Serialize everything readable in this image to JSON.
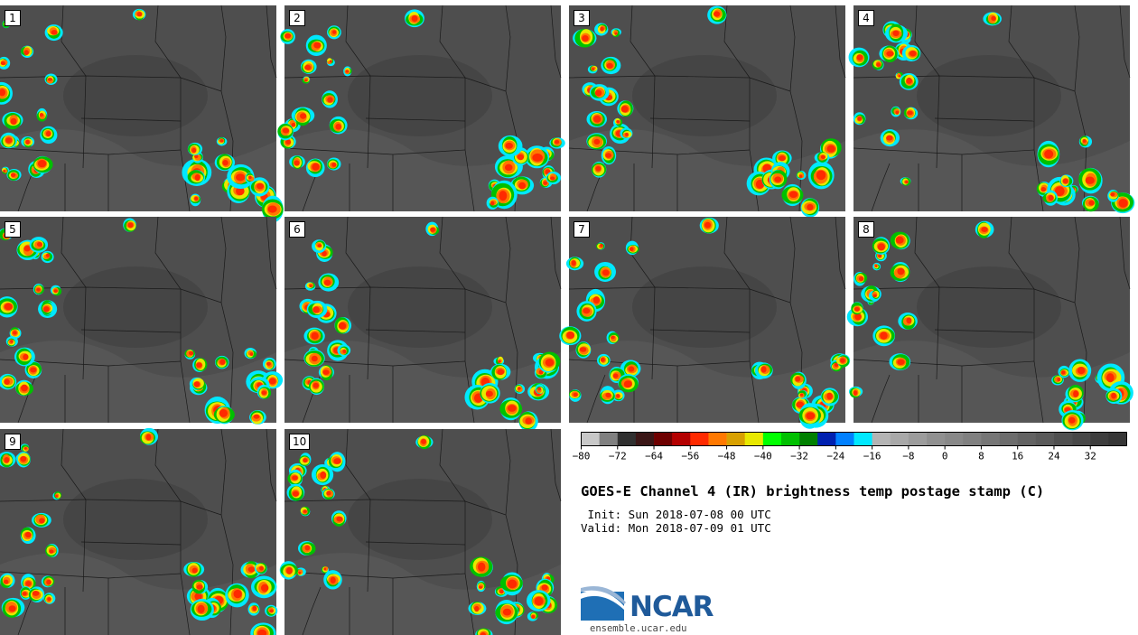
{
  "panels": [
    {
      "label": "1"
    },
    {
      "label": "2"
    },
    {
      "label": "3"
    },
    {
      "label": "4"
    },
    {
      "label": "5"
    },
    {
      "label": "6"
    },
    {
      "label": "7"
    },
    {
      "label": "8"
    },
    {
      "label": "9"
    },
    {
      "label": "10"
    }
  ],
  "colorbar": {
    "ticks": [
      "−80",
      "−72",
      "−64",
      "−56",
      "−48",
      "−40",
      "−32",
      "−24",
      "−16",
      "−8",
      "0",
      "8",
      "16",
      "24",
      "32"
    ],
    "colors": [
      "#c8c8c8",
      "#808080",
      "#303030",
      "#3a1616",
      "#6e0000",
      "#b40000",
      "#ff2a00",
      "#ff7800",
      "#d8a000",
      "#e8e800",
      "#00ff00",
      "#00c000",
      "#008000",
      "#0020b0",
      "#0080ff",
      "#00e8ff",
      "#b4b4b4",
      "#a8a8a8",
      "#9c9c9c",
      "#909090",
      "#888888",
      "#808080",
      "#767676",
      "#6c6c6c",
      "#626262",
      "#5a5a5a",
      "#505050",
      "#484848",
      "#3e3e3e",
      "#363636"
    ]
  },
  "title": "GOES-E Channel 4 (IR) brightness temp postage stamp (C)",
  "init": " Init: Sun 2018-07-08 00 UTC",
  "valid": "Valid: Mon 2018-07-09 01 UTC",
  "logo": {
    "text": "NCAR",
    "url": "ensemble.ucar.edu"
  }
}
